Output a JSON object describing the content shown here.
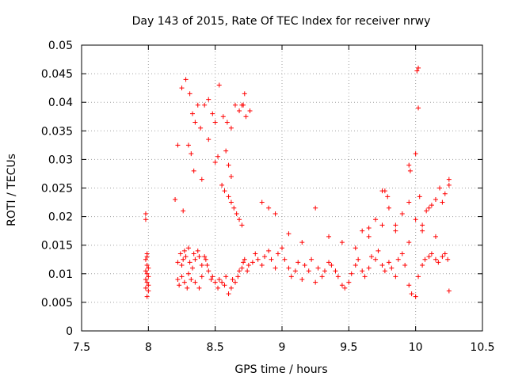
{
  "chart_data": {
    "type": "scatter",
    "title": "Day 143 of 2015, Rate Of TEC Index for receiver nrwy",
    "xlabel": "GPS time / hours",
    "ylabel": "ROTI / TECUs",
    "xlim": [
      7.5,
      10.5
    ],
    "ylim": [
      0,
      0.05
    ],
    "xticks": [
      7.5,
      8,
      8.5,
      9,
      9.5,
      10,
      10.5
    ],
    "xtick_labels": [
      "7.5",
      "8",
      "8.5",
      "9",
      "9.5",
      "10",
      "10.5"
    ],
    "yticks": [
      0,
      0.005,
      0.01,
      0.015,
      0.02,
      0.025,
      0.03,
      0.035,
      0.04,
      0.045,
      0.05
    ],
    "ytick_labels": [
      "0",
      "0.005",
      "0.01",
      "0.015",
      "0.02",
      "0.025",
      "0.03",
      "0.035",
      "0.04",
      "0.045",
      "0.05"
    ],
    "grid": true,
    "marker": "+",
    "series": [
      {
        "name": "ROTI",
        "color": "#ff0000",
        "x": [
          7.98,
          7.98,
          7.99,
          7.99,
          7.98,
          7.99,
          8.0,
          7.98,
          7.99,
          8.0,
          7.98,
          7.99,
          8.0,
          7.98,
          8.0,
          7.99,
          8.22,
          8.24,
          8.25,
          8.26,
          8.27,
          8.28,
          8.3,
          8.31,
          8.33,
          8.34,
          8.35,
          8.37,
          8.38,
          8.4,
          8.22,
          8.23,
          8.25,
          8.27,
          8.29,
          8.3,
          8.32,
          8.35,
          8.38,
          8.4,
          8.42,
          8.43,
          8.44,
          8.45,
          8.47,
          8.48,
          8.5,
          8.52,
          8.53,
          8.55,
          8.57,
          8.58,
          8.6,
          8.62,
          8.63,
          8.65,
          8.67,
          8.68,
          8.7,
          8.71,
          8.72,
          8.74,
          8.75,
          8.78,
          8.8,
          8.82,
          8.85,
          8.87,
          8.9,
          8.92,
          8.95,
          8.97,
          9.0,
          9.02,
          9.05,
          9.07,
          9.1,
          9.12,
          9.15,
          9.17,
          9.2,
          9.22,
          9.25,
          9.27,
          9.3,
          9.32,
          9.35,
          9.37,
          9.4,
          9.42,
          9.45,
          9.47,
          9.5,
          9.52,
          9.55,
          9.57,
          9.6,
          9.62,
          9.65,
          9.67,
          9.7,
          9.72,
          9.75,
          9.77,
          9.8,
          9.82,
          9.85,
          9.87,
          9.9,
          9.92,
          9.95,
          9.97,
          10.0,
          10.02,
          10.05,
          10.07,
          10.1,
          10.12,
          10.15,
          10.17,
          10.2,
          10.22,
          10.24,
          10.25,
          8.25,
          8.28,
          8.31,
          8.33,
          8.35,
          8.37,
          8.39,
          8.42,
          8.45,
          8.48,
          8.5,
          8.53,
          8.56,
          8.59,
          8.62,
          8.65,
          8.68,
          8.71,
          8.73,
          8.76,
          8.55,
          8.57,
          8.6,
          8.62,
          8.64,
          8.66,
          8.68,
          8.7,
          9.6,
          9.65,
          9.7,
          9.75,
          9.8,
          9.85,
          9.9,
          9.95,
          10.0,
          10.05,
          10.1,
          10.15,
          10.2,
          10.25,
          8.85,
          8.9,
          8.95,
          9.05,
          9.15,
          9.25,
          9.35,
          9.45,
          9.55,
          9.65,
          9.75,
          9.85,
          9.95,
          10.05,
          10.15,
          10.01,
          10.02,
          10.02,
          9.95,
          9.96,
          10.0,
          10.03,
          10.08,
          10.18,
          10.22,
          10.25,
          10.12,
          9.77,
          9.79,
          8.3,
          8.32,
          8.34,
          8.6,
          8.62,
          8.58,
          8.2,
          8.22,
          8.26,
          8.4,
          8.45,
          8.5,
          8.52,
          8.7,
          8.72
        ],
        "y": [
          0.0205,
          0.0195,
          0.0135,
          0.013,
          0.0125,
          0.0115,
          0.011,
          0.0105,
          0.01,
          0.0095,
          0.009,
          0.0085,
          0.008,
          0.0075,
          0.007,
          0.006,
          0.012,
          0.0135,
          0.0115,
          0.0125,
          0.014,
          0.013,
          0.0145,
          0.012,
          0.011,
          0.0135,
          0.0125,
          0.014,
          0.013,
          0.0115,
          0.009,
          0.008,
          0.0095,
          0.0085,
          0.0075,
          0.01,
          0.009,
          0.0085,
          0.0075,
          0.0095,
          0.013,
          0.0125,
          0.0115,
          0.0105,
          0.009,
          0.0095,
          0.0085,
          0.0075,
          0.009,
          0.0085,
          0.008,
          0.0095,
          0.0065,
          0.0075,
          0.009,
          0.0085,
          0.0095,
          0.0105,
          0.011,
          0.012,
          0.0125,
          0.0105,
          0.0115,
          0.012,
          0.0135,
          0.0125,
          0.0115,
          0.013,
          0.014,
          0.0125,
          0.011,
          0.0135,
          0.0145,
          0.0125,
          0.011,
          0.0095,
          0.0105,
          0.012,
          0.009,
          0.0115,
          0.0105,
          0.0125,
          0.0085,
          0.011,
          0.0095,
          0.0105,
          0.012,
          0.0115,
          0.0105,
          0.0095,
          0.008,
          0.0075,
          0.0085,
          0.01,
          0.0115,
          0.0125,
          0.0105,
          0.0095,
          0.011,
          0.013,
          0.0125,
          0.014,
          0.0115,
          0.0105,
          0.012,
          0.011,
          0.0095,
          0.0125,
          0.0135,
          0.0115,
          0.008,
          0.0065,
          0.006,
          0.0095,
          0.0115,
          0.0125,
          0.013,
          0.0135,
          0.0125,
          0.012,
          0.013,
          0.0135,
          0.0125,
          0.007,
          0.0425,
          0.044,
          0.0415,
          0.038,
          0.0365,
          0.0395,
          0.0355,
          0.0395,
          0.0405,
          0.038,
          0.0365,
          0.043,
          0.0375,
          0.0365,
          0.0355,
          0.0395,
          0.0385,
          0.0395,
          0.0375,
          0.0385,
          0.0255,
          0.0245,
          0.0235,
          0.0225,
          0.0215,
          0.0205,
          0.0195,
          0.0185,
          0.0175,
          0.018,
          0.0195,
          0.0245,
          0.0215,
          0.0185,
          0.0205,
          0.0225,
          0.0195,
          0.0185,
          0.0215,
          0.023,
          0.0225,
          0.0265,
          0.0225,
          0.0215,
          0.0205,
          0.017,
          0.0155,
          0.0215,
          0.0165,
          0.0155,
          0.0145,
          0.0165,
          0.0185,
          0.0175,
          0.0155,
          0.0175,
          0.0165,
          0.0455,
          0.046,
          0.039,
          0.029,
          0.028,
          0.031,
          0.0235,
          0.021,
          0.025,
          0.024,
          0.0255,
          0.022,
          0.0245,
          0.0235,
          0.0325,
          0.031,
          0.028,
          0.029,
          0.027,
          0.0315,
          0.023,
          0.0325,
          0.021,
          0.0265,
          0.0335,
          0.0295,
          0.0305,
          0.0395,
          0.0415
        ]
      }
    ]
  }
}
